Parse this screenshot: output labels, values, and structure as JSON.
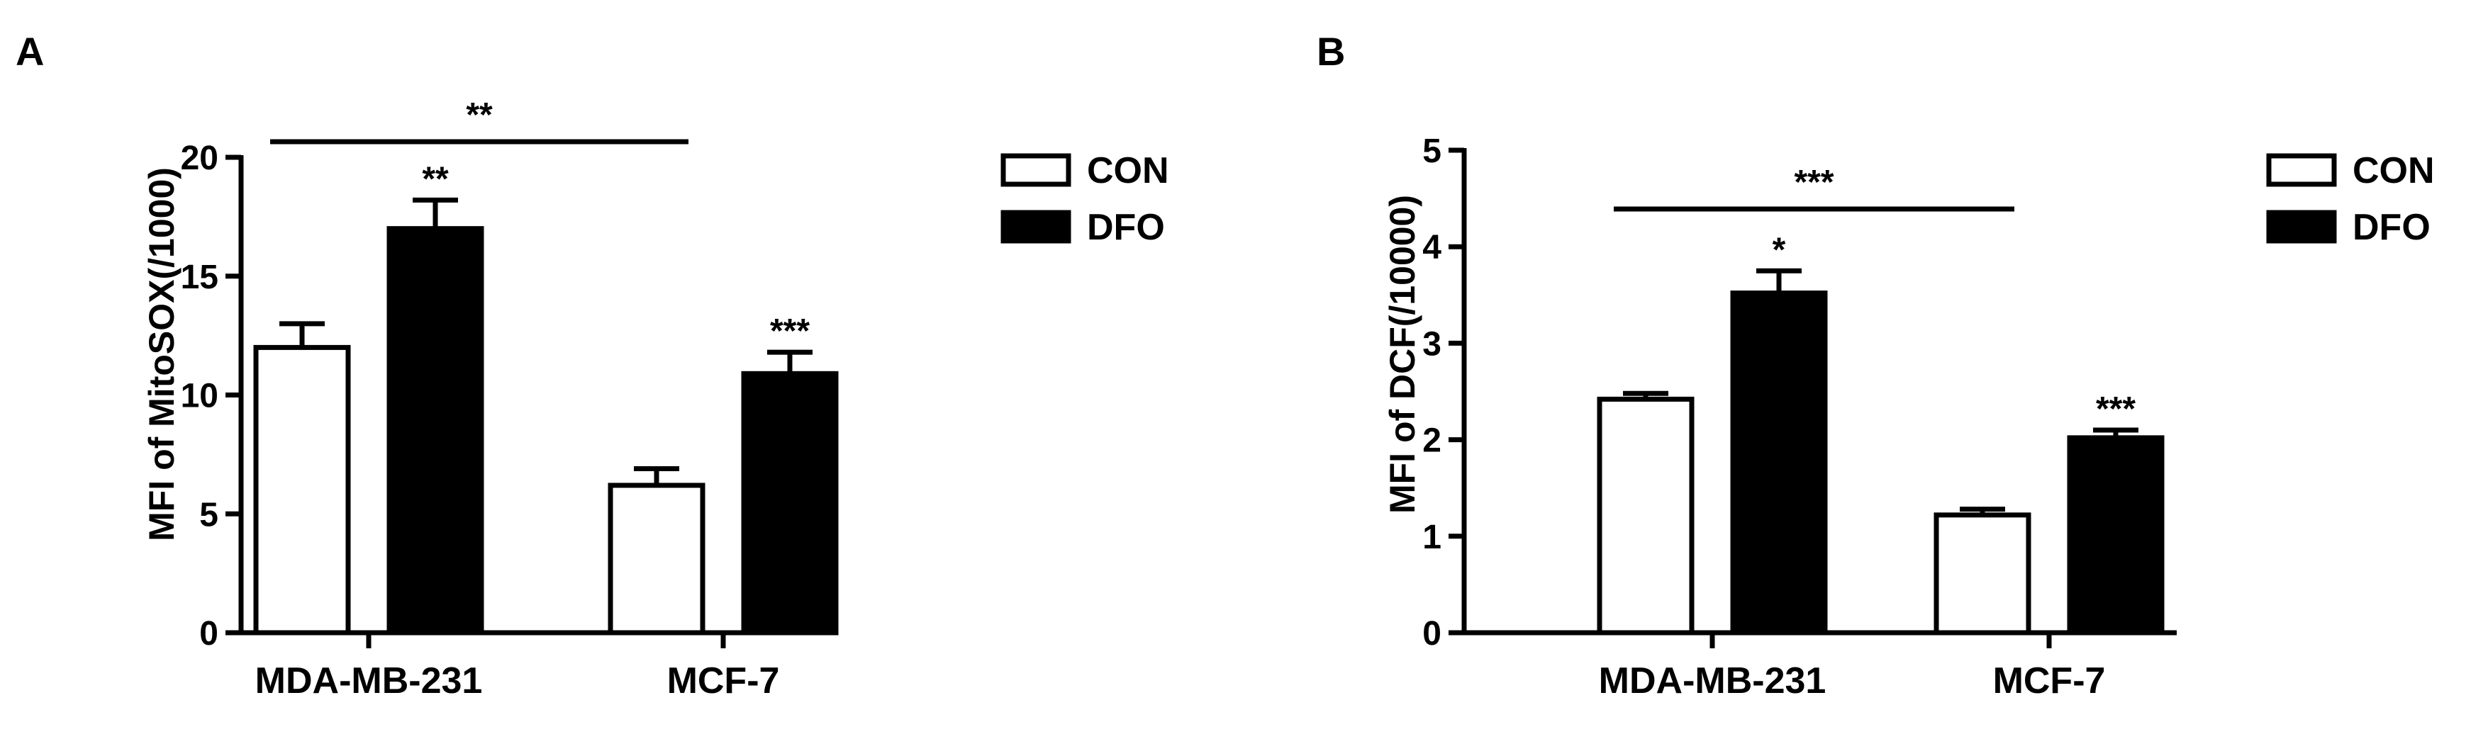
{
  "chart_data": [
    {
      "type": "bar",
      "panel": "A",
      "ylabel": "MFI of MitoSOX(/1000)",
      "categories": [
        "MDA-MB-231",
        "MCF-7"
      ],
      "ylim": [
        0,
        20
      ],
      "yticks": [
        0,
        5,
        10,
        15,
        20
      ],
      "series": [
        {
          "name": "CON",
          "values": [
            12.0,
            6.2
          ],
          "errors": [
            1.0,
            0.7
          ],
          "color": "#ffffff"
        },
        {
          "name": "DFO",
          "values": [
            17.0,
            10.9
          ],
          "errors": [
            1.2,
            0.9
          ],
          "color": "#000000"
        }
      ],
      "bar_annotations": [
        {
          "category": 0,
          "series": 1,
          "text": "**"
        },
        {
          "category": 1,
          "series": 1,
          "text": "***"
        }
      ],
      "bracket": {
        "from_category": 0,
        "to_category": 1,
        "text": "**"
      },
      "legend": "right",
      "grid": false
    },
    {
      "type": "bar",
      "panel": "B",
      "ylabel": "MFI of DCF(/10000)",
      "categories": [
        "MDA-MB-231",
        "MCF-7"
      ],
      "ylim": [
        0,
        5
      ],
      "yticks": [
        0,
        1,
        2,
        3,
        4,
        5
      ],
      "series": [
        {
          "name": "CON",
          "values": [
            2.42,
            1.22
          ],
          "errors": [
            0.06,
            0.06
          ],
          "color": "#ffffff"
        },
        {
          "name": "DFO",
          "values": [
            3.52,
            2.02
          ],
          "errors": [
            0.23,
            0.08
          ],
          "color": "#000000"
        }
      ],
      "bar_annotations": [
        {
          "category": 0,
          "series": 1,
          "text": "*"
        },
        {
          "category": 1,
          "series": 1,
          "text": "***"
        }
      ],
      "bracket": {
        "from_category": 0,
        "to_category": 1,
        "text": "***"
      },
      "legend": "right",
      "grid": false
    }
  ]
}
